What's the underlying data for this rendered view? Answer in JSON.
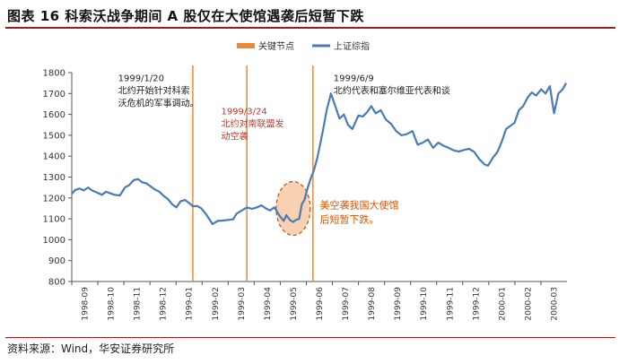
{
  "title": "图表 16 科索沃战争期间 A 股仅在大使馆遇袭后短暂下跌",
  "source": "资料来源：Wind，华安证券研究所",
  "colors": {
    "line": "#4a7bb7",
    "event_line": "#e8893c",
    "highlight_fill": "#f6c9a5",
    "highlight_stroke": "#b8500f",
    "rule": "#9b1c1c",
    "annotation_dark": "#222222",
    "annotation_red": "#c0392b",
    "annotation_orange": "#d35400"
  },
  "legend": [
    {
      "label": "关键节点",
      "kind": "bar",
      "color": "#e8893c"
    },
    {
      "label": "上证综指",
      "kind": "line",
      "color": "#4a7bb7"
    }
  ],
  "chart_data": {
    "type": "line",
    "title": "",
    "xlabel": "",
    "ylabel": "",
    "ylim": [
      800,
      1800
    ],
    "yticks": [
      800,
      900,
      1000,
      1100,
      1200,
      1300,
      1400,
      1500,
      1600,
      1700,
      1800
    ],
    "x_ticks": [
      "1998-09",
      "1998-10",
      "1998-11",
      "1998-12",
      "1999-01",
      "1999-02",
      "1999-03",
      "1999-04",
      "1999-05",
      "1999-06",
      "1999-07",
      "1999-08",
      "1999-09",
      "1999-10",
      "1999-11",
      "1999-12",
      "2000-01",
      "2000-02",
      "2000-03"
    ],
    "x_range": [
      "1998-09-01",
      "2000-03-31"
    ],
    "grid": false,
    "legend_position": "top-center",
    "series": [
      {
        "name": "上证综指",
        "points": [
          [
            "1998-09-01",
            1220
          ],
          [
            "1998-09-05",
            1238
          ],
          [
            "1998-09-10",
            1245
          ],
          [
            "1998-09-15",
            1236
          ],
          [
            "1998-09-20",
            1250
          ],
          [
            "1998-09-25",
            1235
          ],
          [
            "1998-10-01",
            1225
          ],
          [
            "1998-10-06",
            1215
          ],
          [
            "1998-10-11",
            1230
          ],
          [
            "1998-10-16",
            1222
          ],
          [
            "1998-10-21",
            1215
          ],
          [
            "1998-10-27",
            1212
          ],
          [
            "1998-11-02",
            1250
          ],
          [
            "1998-11-07",
            1262
          ],
          [
            "1998-11-12",
            1285
          ],
          [
            "1998-11-17",
            1290
          ],
          [
            "1998-11-22",
            1275
          ],
          [
            "1998-11-27",
            1270
          ],
          [
            "1998-12-02",
            1255
          ],
          [
            "1998-12-07",
            1240
          ],
          [
            "1998-12-12",
            1230
          ],
          [
            "1998-12-17",
            1210
          ],
          [
            "1998-12-22",
            1195
          ],
          [
            "1998-12-27",
            1170
          ],
          [
            "1999-01-01",
            1155
          ],
          [
            "1999-01-06",
            1185
          ],
          [
            "1999-01-11",
            1190
          ],
          [
            "1999-01-16",
            1175
          ],
          [
            "1999-01-20",
            1160
          ],
          [
            "1999-01-25",
            1162
          ],
          [
            "1999-01-30",
            1150
          ],
          [
            "1999-02-04",
            1125
          ],
          [
            "1999-02-08",
            1100
          ],
          [
            "1999-02-12",
            1075
          ],
          [
            "1999-02-18",
            1090
          ],
          [
            "1999-02-24",
            1092
          ],
          [
            "1999-03-02",
            1095
          ],
          [
            "1999-03-08",
            1098
          ],
          [
            "1999-03-12",
            1125
          ],
          [
            "1999-03-18",
            1140
          ],
          [
            "1999-03-24",
            1155
          ],
          [
            "1999-03-30",
            1148
          ],
          [
            "1999-04-05",
            1155
          ],
          [
            "1999-04-10",
            1165
          ],
          [
            "1999-04-15",
            1150
          ],
          [
            "1999-04-20",
            1140
          ],
          [
            "1999-04-25",
            1155
          ],
          [
            "1999-05-01",
            1115
          ],
          [
            "1999-05-06",
            1090
          ],
          [
            "1999-05-09",
            1118
          ],
          [
            "1999-05-13",
            1095
          ],
          [
            "1999-05-17",
            1085
          ],
          [
            "1999-05-20",
            1095
          ],
          [
            "1999-05-24",
            1100
          ],
          [
            "1999-05-27",
            1170
          ],
          [
            "1999-05-30",
            1190
          ],
          [
            "1999-06-03",
            1250
          ],
          [
            "1999-06-07",
            1300
          ],
          [
            "1999-06-10",
            1330
          ],
          [
            "1999-06-14",
            1390
          ],
          [
            "1999-06-17",
            1450
          ],
          [
            "1999-06-21",
            1530
          ],
          [
            "1999-06-25",
            1620
          ],
          [
            "1999-06-30",
            1700
          ],
          [
            "1999-07-05",
            1640
          ],
          [
            "1999-07-10",
            1580
          ],
          [
            "1999-07-15",
            1600
          ],
          [
            "1999-07-20",
            1550
          ],
          [
            "1999-07-25",
            1530
          ],
          [
            "1999-08-01",
            1595
          ],
          [
            "1999-08-06",
            1590
          ],
          [
            "1999-08-11",
            1610
          ],
          [
            "1999-08-16",
            1640
          ],
          [
            "1999-08-21",
            1605
          ],
          [
            "1999-08-27",
            1620
          ],
          [
            "1999-09-02",
            1575
          ],
          [
            "1999-09-08",
            1555
          ],
          [
            "1999-09-14",
            1520
          ],
          [
            "1999-09-20",
            1500
          ],
          [
            "1999-09-26",
            1505
          ],
          [
            "1999-10-03",
            1520
          ],
          [
            "1999-10-09",
            1455
          ],
          [
            "1999-10-15",
            1465
          ],
          [
            "1999-10-21",
            1480
          ],
          [
            "1999-10-27",
            1440
          ],
          [
            "1999-11-02",
            1465
          ],
          [
            "1999-11-08",
            1450
          ],
          [
            "1999-11-14",
            1440
          ],
          [
            "1999-11-20",
            1428
          ],
          [
            "1999-11-26",
            1422
          ],
          [
            "1999-12-02",
            1430
          ],
          [
            "1999-12-08",
            1435
          ],
          [
            "1999-12-14",
            1420
          ],
          [
            "1999-12-20",
            1385
          ],
          [
            "1999-12-26",
            1360
          ],
          [
            "1999-12-30",
            1355
          ],
          [
            "2000-01-05",
            1395
          ],
          [
            "2000-01-10",
            1420
          ],
          [
            "2000-01-15",
            1470
          ],
          [
            "2000-01-20",
            1530
          ],
          [
            "2000-01-25",
            1545
          ],
          [
            "2000-01-30",
            1560
          ],
          [
            "2000-02-04",
            1620
          ],
          [
            "2000-02-09",
            1640
          ],
          [
            "2000-02-14",
            1680
          ],
          [
            "2000-02-19",
            1705
          ],
          [
            "2000-02-24",
            1690
          ],
          [
            "2000-03-01",
            1720
          ],
          [
            "2000-03-06",
            1700
          ],
          [
            "2000-03-11",
            1735
          ],
          [
            "2000-03-16",
            1605
          ],
          [
            "2000-03-21",
            1700
          ],
          [
            "2000-03-26",
            1720
          ],
          [
            "2000-03-30",
            1750
          ]
        ]
      }
    ],
    "event_lines": [
      "1999-01-20",
      "1999-03-24",
      "1999-06-09"
    ],
    "highlight": {
      "center_date": "1999-05-17",
      "center_value": 1150
    },
    "annotations": [
      {
        "lines": [
          "1999/1/20",
          "北约开始针对科索",
          "沃危机的军事调动。"
        ],
        "style": "dark",
        "anchor_date": "1998-10-25",
        "anchor_value": 1760
      },
      {
        "lines": [
          "1999/3/24",
          "北约对南联盟发",
          "动空袭"
        ],
        "style": "red",
        "anchor_date": "1999-02-22",
        "anchor_value": 1600
      },
      {
        "lines": [
          "1999/6/9",
          "北约代表和塞尔维亚代表和谈"
        ],
        "style": "dark",
        "anchor_date": "1999-07-03",
        "anchor_value": 1760
      },
      {
        "lines": [
          "美空袭我国大使馆",
          "后短暂下跌。"
        ],
        "style": "orange",
        "anchor_date": "1999-06-17",
        "anchor_value": 1150
      }
    ]
  }
}
